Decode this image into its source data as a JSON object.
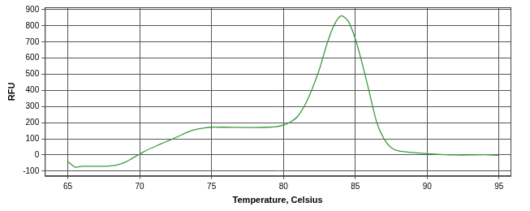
{
  "chart_data": {
    "type": "line",
    "x_label": "Temperature, Celsius",
    "y_label": "RFU",
    "x": [
      65,
      65.5,
      66,
      66.5,
      67,
      67.5,
      68,
      68.5,
      69,
      69.5,
      70,
      70.5,
      71,
      71.5,
      72,
      72.5,
      73,
      73.5,
      74,
      74.5,
      75,
      75.5,
      76,
      77,
      78,
      79,
      79.5,
      80,
      80.5,
      81,
      81.5,
      82,
      82.5,
      83,
      83.5,
      84,
      84.5,
      85,
      85.5,
      86,
      86.5,
      87,
      87.5,
      88,
      89,
      90,
      91,
      92,
      93,
      94,
      95
    ],
    "values": [
      -40,
      -75,
      -70,
      -70,
      -70,
      -70,
      -68,
      -60,
      -45,
      -20,
      5,
      30,
      50,
      70,
      88,
      108,
      128,
      148,
      160,
      168,
      172,
      172,
      172,
      171,
      170,
      172,
      175,
      185,
      205,
      240,
      310,
      410,
      530,
      680,
      800,
      862,
      830,
      720,
      560,
      380,
      200,
      100,
      45,
      25,
      15,
      8,
      3,
      0,
      0,
      2,
      -2
    ],
    "color": "#3c9a3c",
    "xlim": [
      63.4,
      95.8
    ],
    "ylim": [
      -130,
      915
    ],
    "xticks": [
      65,
      70,
      75,
      80,
      85,
      90,
      95
    ],
    "yticks": [
      -100,
      0,
      100,
      200,
      300,
      400,
      500,
      600,
      700,
      800,
      900
    ],
    "grid": true
  }
}
